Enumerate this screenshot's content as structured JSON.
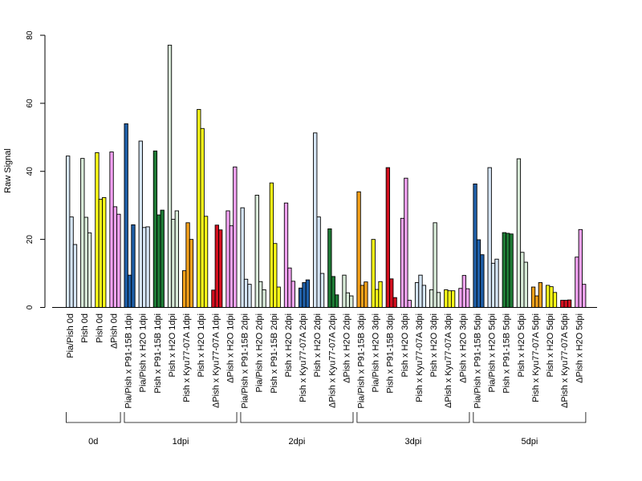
{
  "chart_data": {
    "type": "bar",
    "ylabel": "Raw Signal",
    "xlabel": "",
    "title": "",
    "ylim": [
      0,
      80
    ],
    "yticks": [
      0,
      20,
      40,
      60,
      80
    ],
    "grid": false,
    "categories": [
      "Pia/Pish 0d",
      "Pish 0d",
      "Pish 0d",
      "ΔPish 0d",
      "Pia/Pish x P91-15B 1dpi",
      "Pia/Pish x H2O 1dpi",
      "Pish x P91-15B 1dpi",
      "Pish x H2O 1dpi",
      "Pish x Kyu77-07A 1dpi",
      "Pish x H2O 1dpi",
      "ΔPish x Kyu77-07A 1dpi",
      "ΔPish x H2O 1dpi",
      "Pia/Pish x P91-15B 2dpi",
      "Pia/Pish x H2O 2dpi",
      "Pish x P91-15B 2dpi",
      "Pish x H2O 2dpi",
      "Pish x Kyu77-07A 2dpi",
      "Pish x H2O 2dpi",
      "ΔPish x Kyu77-07A 2dpi",
      "ΔPish x H2O 2dpi",
      "Pia/Pish x P91-15B 3dpi",
      "Pia/Pish x H2O 3dpi",
      "Pish x P91-15B 3dpi",
      "Pish x H2O 3dpi",
      "Pish x Kyu77-07A 3dpi",
      "Pish x H2O 3dpi",
      "ΔPish x Kyu77-07A 3dpi",
      "ΔPish x H2O 3dpi",
      "Pia/Pish x P91-15B 5dpi",
      "Pia/Pish x H2O 5dpi",
      "Pish x P91-15B 5dpi",
      "Pish x H2O 5dpi",
      "Pish x Kyu77-07A 5dpi",
      "Pish x H2O 5dpi",
      "ΔPish x Kyu77-07A 5dpi",
      "ΔPish x H2O 5dpi"
    ],
    "colors": [
      "#d6e6f7",
      "#d9ecd9",
      "#ffff19",
      "#f5a3f5",
      "#1f5fa8",
      "#d6e6f7",
      "#1e7a35",
      "#d9ecd9",
      "#f7a21b",
      "#ffff19",
      "#d4101f",
      "#f5a3f5"
    ],
    "values": [
      [
        44.5,
        26.6,
        18.5
      ],
      [
        43.8,
        26.5,
        21.9
      ],
      [
        45.5,
        31.8,
        32.3
      ],
      [
        45.7,
        29.6,
        27.4
      ],
      [
        54.0,
        9.5,
        24.3
      ],
      [
        48.9,
        23.5,
        23.7
      ],
      [
        46.0,
        27.2,
        28.6
      ],
      [
        77.1,
        25.9,
        28.4
      ],
      [
        10.8,
        24.9,
        20.0
      ],
      [
        58.2,
        52.6,
        26.8
      ],
      [
        5.1,
        24.2,
        22.8
      ],
      [
        28.4,
        24.0,
        41.3
      ],
      [
        29.3,
        8.3,
        6.8
      ],
      [
        33.0,
        7.6,
        5.2
      ],
      [
        36.6,
        18.8,
        6.0
      ],
      [
        30.7,
        11.6,
        7.7
      ],
      [
        5.7,
        7.3,
        8.1
      ],
      [
        51.3,
        26.6,
        10.0
      ],
      [
        23.1,
        9.1,
        3.7
      ],
      [
        9.5,
        4.3,
        3.4
      ],
      [
        34.0,
        6.5,
        7.5
      ],
      [
        20.0,
        5.3,
        7.6
      ],
      [
        41.1,
        8.4,
        2.9
      ],
      [
        26.2,
        38.0,
        2.1
      ],
      [
        7.3,
        9.5,
        6.5
      ],
      [
        5.2,
        24.9,
        4.4
      ],
      [
        5.2,
        4.9,
        4.9
      ],
      [
        5.6,
        9.4,
        5.5
      ],
      [
        36.3,
        19.9,
        15.5
      ],
      [
        41.1,
        13.0,
        14.2
      ],
      [
        22.0,
        21.8,
        21.6
      ],
      [
        43.7,
        16.2,
        13.3
      ],
      [
        6.0,
        3.4,
        7.3
      ],
      [
        6.5,
        6.1,
        4.4
      ],
      [
        2.1,
        2.1,
        2.2
      ],
      [
        14.8,
        22.9,
        6.8
      ]
    ],
    "groups": [
      {
        "label": "0d",
        "start": 0,
        "end": 3
      },
      {
        "label": "1dpi",
        "start": 4,
        "end": 11
      },
      {
        "label": "2dpi",
        "start": 12,
        "end": 19
      },
      {
        "label": "3dpi",
        "start": 20,
        "end": 27
      },
      {
        "label": "5dpi",
        "start": 28,
        "end": 35
      }
    ]
  }
}
